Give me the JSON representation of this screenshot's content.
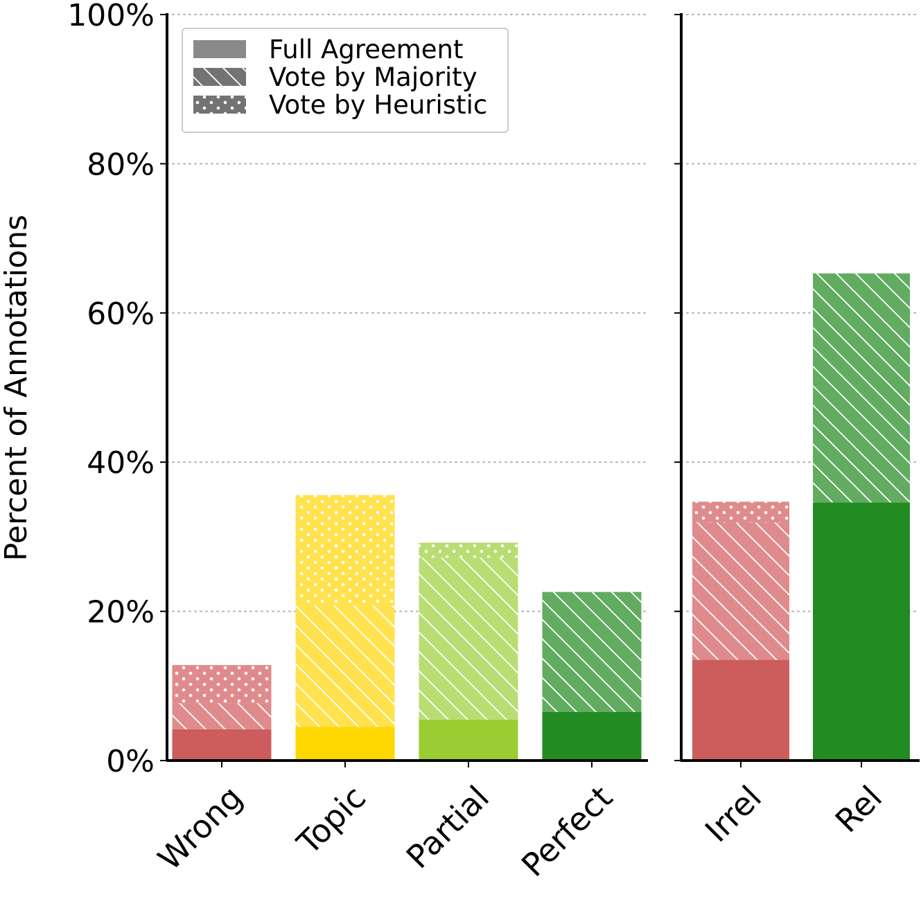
{
  "chart_data": [
    {
      "type": "bar",
      "stacked": true,
      "ylabel": "Percent of Annotations",
      "ylim": [
        0,
        100
      ],
      "yticks": [
        "0%",
        "20%",
        "40%",
        "60%",
        "80%",
        "100%"
      ],
      "ytick_values": [
        0,
        20,
        40,
        60,
        80,
        100
      ],
      "grid": "y-dotted",
      "categories": [
        "Wrong",
        "Topic",
        "Partial",
        "Perfect"
      ],
      "colors": {
        "Wrong": {
          "solid": "#cd5c5c",
          "light": "#df8b8b"
        },
        "Topic": {
          "solid": "#ffd700",
          "light": "#ffe24d"
        },
        "Partial": {
          "solid": "#9acd32",
          "light": "#b9dd72"
        },
        "Perfect": {
          "solid": "#228b22",
          "light": "#61ac61"
        }
      },
      "series": [
        {
          "name": "Full Agreement",
          "pattern": "solid",
          "values": [
            4.2,
            4.5,
            5.5,
            6.5
          ]
        },
        {
          "name": "Vote by Majority",
          "pattern": "hatch",
          "values": [
            3.5,
            16.3,
            21.7,
            16.1
          ]
        },
        {
          "name": "Vote by Heuristic",
          "pattern": "dots",
          "values": [
            5.1,
            14.8,
            2.0,
            0.0
          ]
        }
      ],
      "legend": {
        "position": "top-left",
        "entries": [
          "Full Agreement",
          "Vote by Majority",
          "Vote by Heuristic"
        ]
      }
    },
    {
      "type": "bar",
      "stacked": true,
      "ylim": [
        0,
        100
      ],
      "grid": "y-dotted",
      "categories": [
        "Irrel",
        "Rel"
      ],
      "colors": {
        "Irrel": {
          "solid": "#cd5c5c",
          "light": "#df8b8b"
        },
        "Rel": {
          "solid": "#228b22",
          "light": "#61ac61"
        }
      },
      "series": [
        {
          "name": "Full Agreement",
          "pattern": "solid",
          "values": [
            13.5,
            34.6
          ]
        },
        {
          "name": "Vote by Majority",
          "pattern": "hatch",
          "values": [
            18.4,
            30.7
          ]
        },
        {
          "name": "Vote by Heuristic",
          "pattern": "dots",
          "values": [
            2.8,
            0.0
          ]
        }
      ]
    }
  ]
}
